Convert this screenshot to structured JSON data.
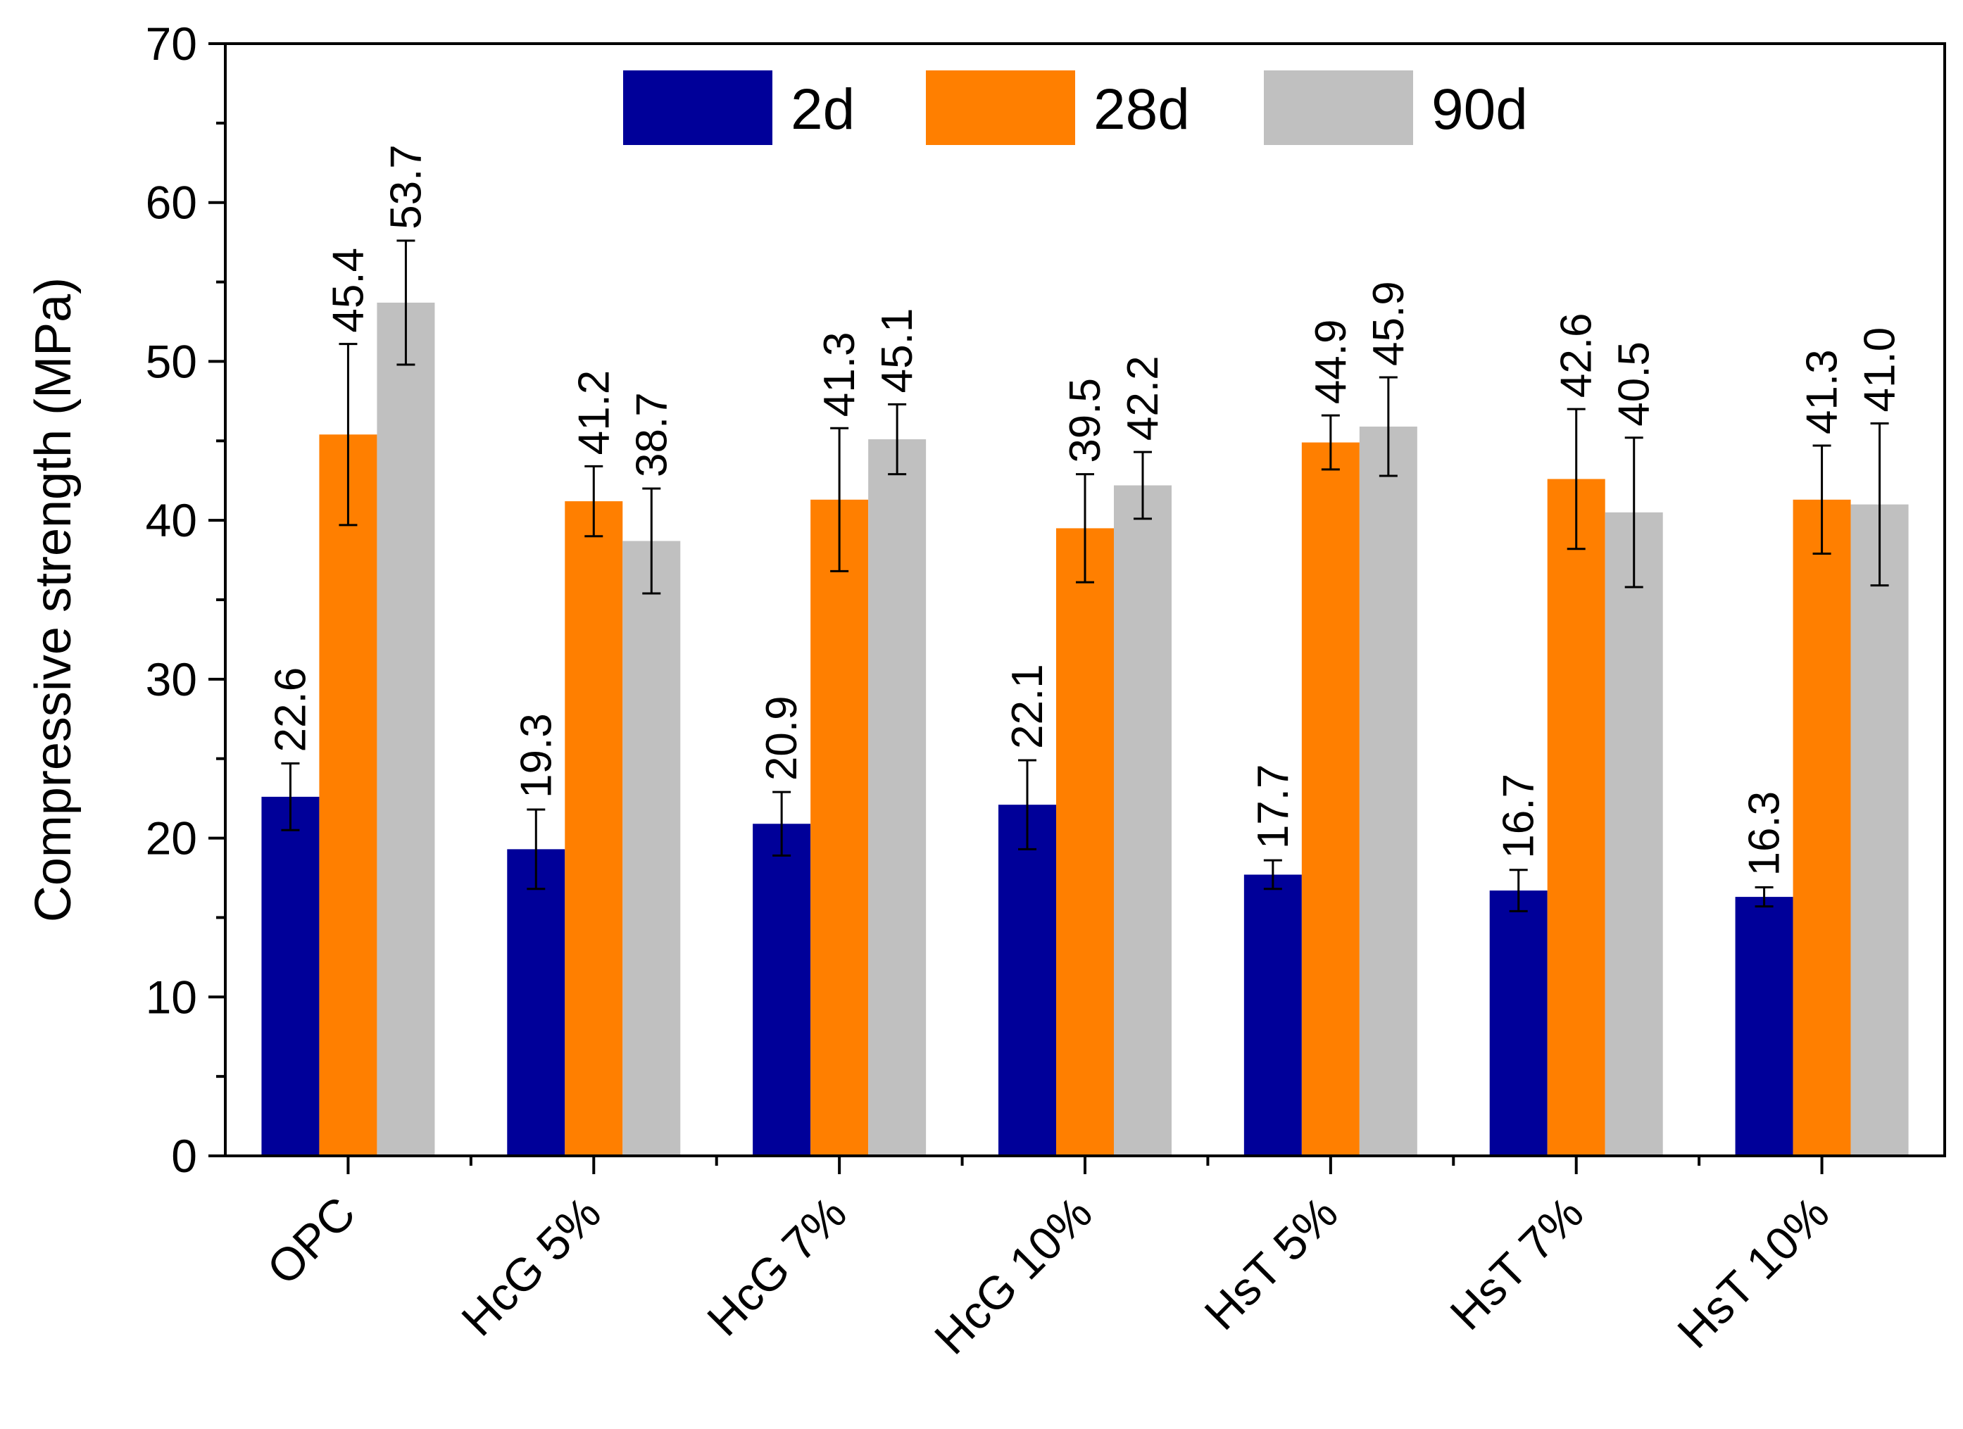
{
  "chart_data": {
    "type": "bar",
    "title": "",
    "xlabel": "",
    "ylabel": "Compressive strength (MPa)",
    "ylim": [
      0,
      70
    ],
    "yticks": [
      0,
      10,
      20,
      30,
      40,
      50,
      60,
      70
    ],
    "categories": [
      "OPC",
      "HcG 5%",
      "HcG 7%",
      "HcG 10%",
      "HsT 5%",
      "HsT 7%",
      "HsT 10%"
    ],
    "series": [
      {
        "name": "2d",
        "color": "#000099",
        "values": [
          22.6,
          19.3,
          20.9,
          22.1,
          17.7,
          16.7,
          16.3
        ],
        "labels": [
          "22.6",
          "19.3",
          "20.9",
          "22.1",
          "17.7",
          "16.7",
          "16.3"
        ],
        "errors": [
          2.1,
          2.5,
          2.0,
          2.8,
          0.9,
          1.3,
          0.6
        ]
      },
      {
        "name": "28d",
        "color": "#ff7f00",
        "values": [
          45.4,
          41.2,
          41.3,
          39.5,
          44.9,
          42.6,
          41.3
        ],
        "labels": [
          "45.4",
          "41.2",
          "41.3",
          "39.5",
          "44.9",
          "42.6",
          "41.3"
        ],
        "errors": [
          5.7,
          2.2,
          4.5,
          3.4,
          1.7,
          4.4,
          3.4
        ]
      },
      {
        "name": "90d",
        "color": "#c0c0c0",
        "values": [
          53.7,
          38.7,
          45.1,
          42.2,
          45.9,
          40.5,
          41.0
        ],
        "labels": [
          "53.7",
          "38.7",
          "45.1",
          "42.2",
          "45.9",
          "40.5",
          "41.0"
        ],
        "errors": [
          3.9,
          3.3,
          2.2,
          2.1,
          3.1,
          4.7,
          5.1
        ]
      }
    ],
    "legend_position": "top-center",
    "grid": false
  }
}
